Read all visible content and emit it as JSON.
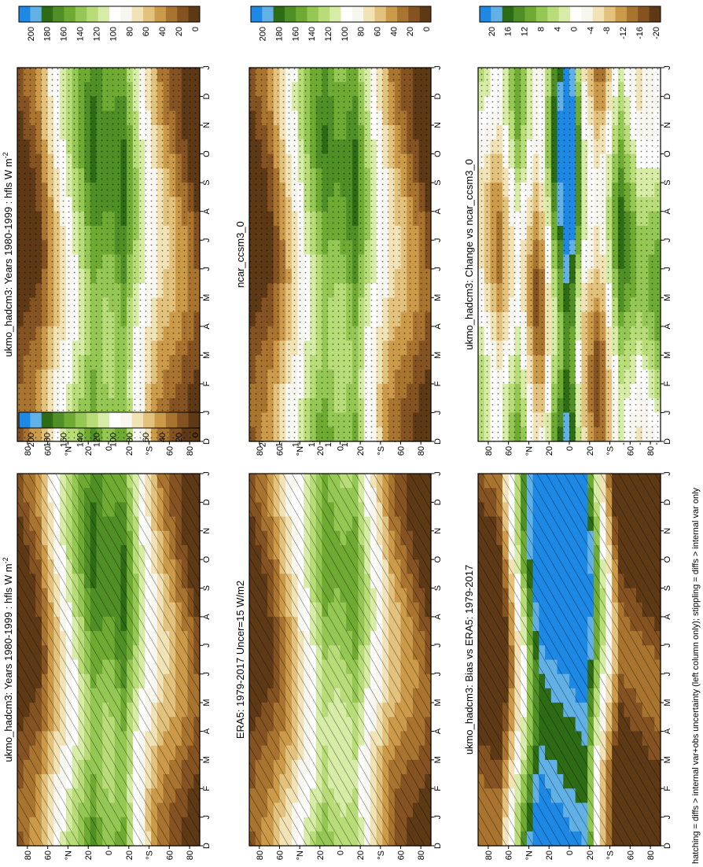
{
  "footnote": "hatching = diffs > internal var+obs uncertainty (left column only); stippling = diffs > internal var only",
  "months": [
    "D",
    "J",
    "F",
    "M",
    "A",
    "M",
    "J",
    "J",
    "A",
    "S",
    "O",
    "N",
    "D",
    "J"
  ],
  "lat_ticks": [
    "80",
    "60",
    "°N",
    "20",
    "0",
    "20",
    "°S",
    "60",
    "80"
  ],
  "colorbars": {
    "abs": {
      "labels": [
        "200",
        "180",
        "160",
        "140",
        "120",
        "100",
        "80",
        "60",
        "40",
        "20",
        "0"
      ],
      "colors": [
        "#1e88e5",
        "#62b1e6",
        "#2e6b15",
        "#4f8f25",
        "#6fab33",
        "#95c754",
        "#b8dc78",
        "#d7eca6",
        "#ffffff",
        "#f7f7ef",
        "#f2e3b6",
        "#e2c27d",
        "#cc9b4a",
        "#a8742f",
        "#855322",
        "#5e3916"
      ]
    },
    "diff": {
      "labels": [
        "20",
        "16",
        "12",
        "8",
        "4",
        "0",
        "-4",
        "-8",
        "-12",
        "-16",
        "-20"
      ],
      "colors": [
        "#1e88e5",
        "#62b1e6",
        "#2e6b15",
        "#4f8f25",
        "#6fab33",
        "#95c754",
        "#b8dc78",
        "#d7eca6",
        "#ffffff",
        "#f7f7ef",
        "#f2e3b6",
        "#e2c27d",
        "#cc9b4a",
        "#a8742f",
        "#855322",
        "#5e3916"
      ]
    }
  },
  "chart_data": [
    {
      "type": "heatmap",
      "title": "ukmo_hadcm3: Years 1980-1999 : hfls W m",
      "title_sup": "-2",
      "x_axis": "month",
      "y_axis": "latitude",
      "colorbar": "abs",
      "range": [
        0,
        200
      ],
      "profile": {
        "lat": [
          -90,
          -70,
          -50,
          -30,
          -15,
          0,
          15,
          30,
          50,
          70,
          90
        ],
        "values": [
          5,
          25,
          75,
          120,
          150,
          135,
          150,
          100,
          55,
          30,
          5
        ]
      }
    },
    {
      "type": "heatmap",
      "title": "ukmo_hadcm3: Years 1980-1999 : hfls W m",
      "title_sup": "-2",
      "x_axis": "month",
      "y_axis": "latitude",
      "colorbar": "abs",
      "range": [
        0,
        200
      ],
      "profile": {
        "lat": [
          -90,
          -70,
          -50,
          -30,
          -15,
          0,
          15,
          30,
          50,
          70,
          90
        ],
        "values": [
          5,
          25,
          75,
          120,
          150,
          135,
          150,
          100,
          55,
          30,
          5
        ]
      }
    },
    {
      "type": "heatmap",
      "title": "ERA5: 1979-2017 Uncer=15 W/m2",
      "title_sup": "",
      "x_axis": "month",
      "y_axis": "latitude",
      "colorbar": "abs",
      "range": [
        0,
        200
      ],
      "profile": {
        "lat": [
          -90,
          -70,
          -50,
          -30,
          -15,
          0,
          15,
          30,
          50,
          70,
          90
        ],
        "values": [
          5,
          25,
          60,
          100,
          130,
          120,
          130,
          90,
          45,
          25,
          5
        ]
      }
    },
    {
      "type": "heatmap",
      "title": "ncar_ccsm3_0",
      "title_sup": "",
      "x_axis": "month",
      "y_axis": "latitude",
      "colorbar": "abs",
      "range": [
        0,
        200
      ],
      "profile": {
        "lat": [
          -90,
          -70,
          -50,
          -30,
          -15,
          0,
          15,
          30,
          50,
          70,
          90
        ],
        "values": [
          5,
          25,
          70,
          120,
          145,
          130,
          150,
          100,
          55,
          30,
          5
        ]
      }
    },
    {
      "type": "heatmap",
      "title": "ukmo_hadcm3: Bias vs ERA5: 1979-2017",
      "title_sup": "",
      "x_axis": "month",
      "y_axis": "latitude",
      "colorbar": "diff",
      "range": [
        -20,
        20
      ],
      "profile": {
        "lat": [
          -90,
          -70,
          -50,
          -30,
          -15,
          0,
          15,
          30,
          50,
          70,
          90
        ],
        "values": [
          -20,
          -20,
          0,
          20,
          20,
          20,
          20,
          0,
          -20,
          -20,
          -20
        ]
      }
    },
    {
      "type": "heatmap",
      "title": "ukmo_hadcm3: Change vs ncar_ccsm3_0",
      "title_sup": "",
      "x_axis": "month",
      "y_axis": "latitude",
      "colorbar": "diff",
      "range": [
        -20,
        20
      ],
      "profile": {
        "lat": [
          -90,
          -70,
          -50,
          -30,
          -15,
          0,
          15,
          30,
          50,
          70,
          90
        ],
        "values": [
          0,
          -8,
          4,
          -12,
          8,
          20,
          -4,
          -12,
          8,
          0,
          4
        ]
      }
    }
  ]
}
